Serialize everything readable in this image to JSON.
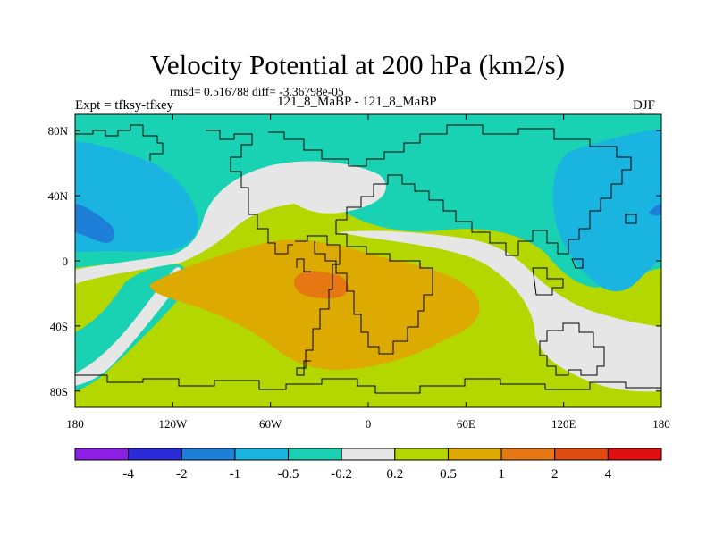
{
  "chart_data": {
    "type": "heatmap",
    "title": "Velocity Potential at 200 hPa (km2/s)",
    "stats_line": "rmsd= 0.516788 diff= -3.36798e-05",
    "experiment_label": "Expt = tfksy-tfkey",
    "cases_label": "121_8_MaBP - 121_8_MaBP",
    "season": "DJF",
    "xlim": [
      -180,
      180
    ],
    "ylim": [
      -90,
      90
    ],
    "x_ticks": [
      {
        "value": -180,
        "label": "180"
      },
      {
        "value": -120,
        "label": "120W"
      },
      {
        "value": -60,
        "label": "60W"
      },
      {
        "value": 0,
        "label": "0"
      },
      {
        "value": 60,
        "label": "60E"
      },
      {
        "value": 120,
        "label": "120E"
      },
      {
        "value": 180,
        "label": "180"
      }
    ],
    "y_ticks": [
      {
        "value": 80,
        "label": "80N"
      },
      {
        "value": 40,
        "label": "40N"
      },
      {
        "value": 0,
        "label": "0"
      },
      {
        "value": -40,
        "label": "40S"
      },
      {
        "value": -80,
        "label": "80S"
      }
    ],
    "colorbar": {
      "boundaries": [
        "-4",
        "-2",
        "-1",
        "-0.5",
        "-0.2",
        "0.2",
        "0.5",
        "1",
        "2",
        "4"
      ],
      "colors": [
        "#8c1ee6",
        "#2b2bd9",
        "#1e7fd9",
        "#19b4e0",
        "#19d2b4",
        "#e6e6e6",
        "#b4d700",
        "#dcaa00",
        "#e67814",
        "#e04b10",
        "#e01010"
      ]
    }
  }
}
